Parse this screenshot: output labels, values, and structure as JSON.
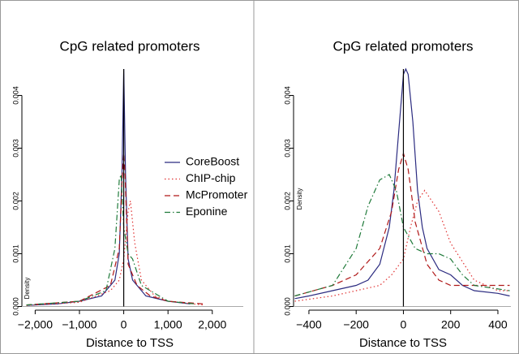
{
  "chart_data": [
    {
      "type": "line",
      "title": "CpG related promoters",
      "x_label": "Distance to TSS",
      "y_label": "Density",
      "xlim": [
        -2300,
        2700
      ],
      "ylim": [
        -0.0001,
        0.0045
      ],
      "xticks": [
        {
          "value": -2000,
          "label": "−2,000"
        },
        {
          "value": -1000,
          "label": "−1,000"
        },
        0,
        {
          "value": 1000,
          "label": "1,000"
        },
        {
          "value": 2000,
          "label": "2,000"
        }
      ],
      "yticks": [
        {
          "value": 0,
          "label": "0.000"
        },
        {
          "value": 0.001,
          "label": "0.001"
        },
        {
          "value": 0.002,
          "label": "0.002"
        },
        {
          "value": 0.003,
          "label": "0.003"
        },
        {
          "value": 0.004,
          "label": "0.004"
        }
      ],
      "vline": 0,
      "hline": 0,
      "legend": true,
      "series": [
        {
          "name": "CoreBoost",
          "color": "#2b2b80",
          "style": "solid",
          "x": [
            -2200,
            -1500,
            -1000,
            -500,
            -200,
            -100,
            -40,
            0,
            40,
            100,
            200,
            500,
            1000,
            1500
          ],
          "values": [
            2e-05,
            5e-05,
            0.0001,
            0.0002,
            0.0005,
            0.001,
            0.0025,
            0.0045,
            0.0025,
            0.0009,
            0.0005,
            0.0002,
            0.0001,
            5e-05
          ]
        },
        {
          "name": "ChIP-chip",
          "color": "#e03030",
          "style": "dotted",
          "x": [
            -2200,
            -1000,
            -300,
            -100,
            0,
            100,
            150,
            250,
            400,
            700,
            1000,
            1800
          ],
          "values": [
            2e-05,
            8e-05,
            0.0003,
            0.0005,
            0.0009,
            0.0018,
            0.002,
            0.0012,
            0.0005,
            0.0002,
            0.0001,
            3e-05
          ]
        },
        {
          "name": "McPromoter",
          "color": "#b01818",
          "style": "dashed",
          "x": [
            -2200,
            -1000,
            -300,
            -100,
            -30,
            0,
            30,
            100,
            300,
            600,
            1000,
            1800
          ],
          "values": [
            3e-05,
            0.0001,
            0.0004,
            0.0011,
            0.0025,
            0.0029,
            0.0025,
            0.0008,
            0.0004,
            0.0002,
            0.0001,
            5e-05
          ]
        },
        {
          "name": "Eponine",
          "color": "#1f7a3a",
          "style": "dashdot",
          "x": [
            -2200,
            -1000,
            -400,
            -200,
            -100,
            -60,
            0,
            100,
            200,
            400,
            1000,
            1600
          ],
          "values": [
            3e-05,
            0.0001,
            0.0003,
            0.0011,
            0.0024,
            0.0025,
            0.0015,
            0.001,
            0.0009,
            0.0004,
            0.0001,
            5e-05
          ]
        }
      ]
    },
    {
      "type": "line",
      "title": "CpG related promoters",
      "x_label": "Distance to TSS",
      "y_label": "Density",
      "xlim": [
        -465,
        455
      ],
      "ylim": [
        -0.0001,
        0.0045
      ],
      "xticks": [
        {
          "value": -400,
          "label": "−400"
        },
        {
          "value": -200,
          "label": "−200"
        },
        0,
        200,
        400
      ],
      "yticks": [
        {
          "value": 0,
          "label": "0.000"
        },
        {
          "value": 0.001,
          "label": "0.001"
        },
        {
          "value": 0.002,
          "label": "0.002"
        },
        {
          "value": 0.003,
          "label": "0.003"
        },
        {
          "value": 0.004,
          "label": "0.004"
        }
      ],
      "vline": 0,
      "hline": 0,
      "legend": false,
      "series": [
        {
          "color": "#2b2b80",
          "style": "solid",
          "x": [
            -460,
            -400,
            -300,
            -200,
            -150,
            -100,
            -60,
            -40,
            -20,
            0,
            10,
            20,
            40,
            60,
            80,
            100,
            150,
            200,
            250,
            300,
            400,
            450
          ],
          "values": [
            0.00015,
            0.0002,
            0.0003,
            0.0004,
            0.0005,
            0.0008,
            0.0015,
            0.0022,
            0.0033,
            0.0044,
            0.0045,
            0.0044,
            0.0035,
            0.0022,
            0.0015,
            0.0011,
            0.0007,
            0.0006,
            0.0004,
            0.0003,
            0.00025,
            0.0002
          ]
        },
        {
          "color": "#e03030",
          "style": "dotted",
          "x": [
            -460,
            -300,
            -200,
            -100,
            -50,
            0,
            30,
            60,
            90,
            150,
            200,
            300,
            400,
            450
          ],
          "values": [
            0.0001,
            0.0002,
            0.0003,
            0.0004,
            0.0006,
            0.0009,
            0.0015,
            0.002,
            0.0022,
            0.0018,
            0.0012,
            0.0005,
            0.0003,
            0.0003
          ]
        },
        {
          "color": "#b01818",
          "style": "dashed",
          "x": [
            -460,
            -300,
            -200,
            -100,
            -50,
            -20,
            0,
            20,
            50,
            100,
            150,
            200,
            300,
            450
          ],
          "values": [
            0.0002,
            0.0004,
            0.0006,
            0.0011,
            0.0018,
            0.0026,
            0.0029,
            0.0026,
            0.0016,
            0.0008,
            0.0005,
            0.0004,
            0.0004,
            0.0004
          ]
        },
        {
          "color": "#1f7a3a",
          "style": "dashdot",
          "x": [
            -460,
            -300,
            -200,
            -150,
            -100,
            -60,
            -30,
            0,
            50,
            100,
            150,
            200,
            250,
            300,
            450
          ],
          "values": [
            0.0002,
            0.0004,
            0.0011,
            0.0019,
            0.0024,
            0.0025,
            0.0022,
            0.0015,
            0.0011,
            0.001,
            0.001,
            0.0009,
            0.0006,
            0.0004,
            0.0003
          ]
        }
      ]
    }
  ]
}
